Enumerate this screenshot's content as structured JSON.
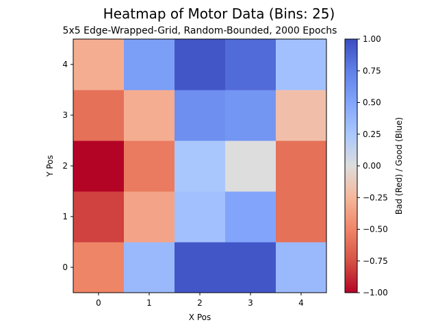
{
  "chart_data": {
    "type": "heatmap",
    "title": "Heatmap of Motor Data (Bins: 25)",
    "subtitle": "5x5 Edge-Wrapped-Grid, Random-Bounded, 2000 Epochs",
    "xlabel": "X Pos",
    "ylabel": "Y Pos",
    "x_categories": [
      "0",
      "1",
      "2",
      "3",
      "4"
    ],
    "y_categories": [
      "0",
      "1",
      "2",
      "3",
      "4"
    ],
    "values": [
      [
        -0.5,
        0.35,
        0.95,
        0.95,
        0.35
      ],
      [
        -0.8,
        -0.35,
        0.3,
        0.5,
        -0.6
      ],
      [
        -1.0,
        -0.55,
        0.25,
        0.0,
        -0.6
      ],
      [
        -0.6,
        -0.3,
        0.65,
        0.6,
        -0.2
      ],
      [
        -0.3,
        0.55,
        0.95,
        0.85,
        0.3
      ]
    ],
    "colormap": "coolwarm_r",
    "vmin": -1.0,
    "vmax": 1.0,
    "colorbar_label": "Bad (Red)     /     Good (Blue)",
    "colorbar_ticks": [
      "1.00",
      "0.75",
      "0.50",
      "0.25",
      "0.00",
      "−0.25",
      "−0.50",
      "−0.75",
      "−1.00"
    ]
  }
}
